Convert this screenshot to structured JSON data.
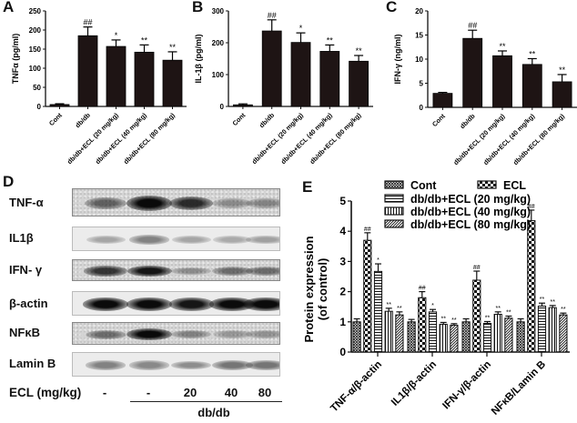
{
  "panels": {
    "A": {
      "letter": "A"
    },
    "B": {
      "letter": "B"
    },
    "C": {
      "letter": "C"
    },
    "D": {
      "letter": "D"
    },
    "E": {
      "letter": "E"
    }
  },
  "chart_data": [
    {
      "id": "A",
      "type": "bar",
      "title": "",
      "xlabel": "",
      "ylabel": "TNFα (pg/ml)",
      "categories": [
        "Cont",
        "db/db",
        "db/db+ECL (20 mg/kg)",
        "db/db+ECL (40 mg/kg)",
        "db/db+ECL (80 mg/kg)"
      ],
      "values": [
        5,
        185,
        157,
        142,
        121
      ],
      "errors": [
        2,
        23,
        17,
        19,
        22
      ],
      "annotations": [
        "",
        "##",
        "*",
        "**",
        "**"
      ],
      "ylim": [
        0,
        250
      ],
      "yticks": [
        0,
        50,
        100,
        150,
        200,
        250
      ],
      "bar_color": "#1e1414",
      "grid": false
    },
    {
      "id": "B",
      "type": "bar",
      "title": "",
      "xlabel": "",
      "ylabel": "IL-1β (pg/ml)",
      "categories": [
        "Cont",
        "db/db",
        "db/db+ECL (20 mg/kg)",
        "db/db+ECL (40 mg/kg)",
        "db/db+ECL (80 mg/kg)"
      ],
      "values": [
        5,
        237,
        201,
        173,
        142
      ],
      "errors": [
        3,
        35,
        30,
        20,
        18
      ],
      "annotations": [
        "",
        "##",
        "*",
        "**",
        "**"
      ],
      "ylim": [
        0,
        300
      ],
      "yticks": [
        0,
        100,
        200,
        300
      ],
      "bar_color": "#1e1414",
      "grid": false
    },
    {
      "id": "C",
      "type": "bar",
      "title": "",
      "xlabel": "",
      "ylabel": "IFN-γ (ng/ml)",
      "categories": [
        "Cont",
        "db/db",
        "db/db+ECL (20 mg/kg)",
        "db/db+ECL (40 mg/kg)",
        "db/db+ECL (80 mg/kg)"
      ],
      "values": [
        2.9,
        14.3,
        10.7,
        8.9,
        5.3
      ],
      "errors": [
        0.2,
        1.7,
        1.0,
        1.2,
        1.5
      ],
      "annotations": [
        "",
        "##",
        "**",
        "**",
        "**"
      ],
      "ylim": [
        0,
        20
      ],
      "yticks": [
        0,
        5,
        10,
        15,
        20
      ],
      "bar_color": "#1e1414",
      "grid": false
    },
    {
      "id": "E",
      "type": "bar",
      "title": "",
      "xlabel": "",
      "ylabel": "Protein expression (of control)",
      "categories": [
        "TNF-α/β-actin",
        "IL1β/β-actin",
        "IFN-γ/β-actin",
        "NFκB/Lamin B"
      ],
      "series": [
        {
          "name": "Cont",
          "pattern": "crosshatch",
          "values": [
            1.0,
            1.0,
            1.0,
            1.0
          ],
          "errors": [
            0.1,
            0.08,
            0.1,
            0.1
          ],
          "annotations": [
            "",
            "",
            "",
            ""
          ]
        },
        {
          "name": "ECL",
          "pattern": "checker",
          "values": [
            3.7,
            1.8,
            2.38,
            4.35
          ],
          "errors": [
            0.25,
            0.2,
            0.3,
            0.35
          ],
          "annotations": [
            "##",
            "##",
            "##",
            "##"
          ]
        },
        {
          "name": "db/db+ECL (20 mg/kg)",
          "pattern": "horizontal",
          "values": [
            2.67,
            1.33,
            0.95,
            1.52
          ],
          "errors": [
            0.25,
            0.08,
            0.06,
            0.1
          ],
          "annotations": [
            "*",
            "*",
            "**",
            "**"
          ]
        },
        {
          "name": "db/db+ECL (40 mg/kg)",
          "pattern": "vertical",
          "values": [
            1.35,
            0.92,
            1.25,
            1.47
          ],
          "errors": [
            0.1,
            0.06,
            0.08,
            0.07
          ],
          "annotations": [
            "**",
            "**",
            "**",
            "**"
          ]
        },
        {
          "name": "db/db+ECL (80 mg/kg)",
          "pattern": "diagonal",
          "values": [
            1.23,
            0.89,
            1.12,
            1.23
          ],
          "errors": [
            0.1,
            0.05,
            0.07,
            0.06
          ],
          "annotations": [
            "**",
            "**",
            "**",
            "**"
          ]
        }
      ],
      "ylim": [
        0,
        5
      ],
      "yticks": [
        0,
        1,
        2,
        3,
        4,
        5
      ],
      "legend_position": "top-right",
      "grid": false
    }
  ],
  "western_blot": {
    "rows": [
      {
        "label": "TNF-α",
        "intensities": [
          0.55,
          1.0,
          0.8,
          0.35,
          0.38
        ],
        "noise": true
      },
      {
        "label": "IL1β",
        "intensities": [
          0.3,
          0.45,
          0.3,
          0.28,
          0.32
        ],
        "noise": false
      },
      {
        "label": "IFN- γ",
        "intensities": [
          0.75,
          0.9,
          0.35,
          0.5,
          0.5
        ],
        "noise": true
      },
      {
        "label": "β-actin",
        "intensities": [
          0.95,
          0.95,
          0.9,
          0.95,
          0.95
        ],
        "noise": false
      },
      {
        "label": "NFκB",
        "intensities": [
          0.5,
          1.0,
          0.4,
          0.3,
          0.32
        ],
        "noise": true
      },
      {
        "label": "Lamin B",
        "intensities": [
          0.45,
          0.42,
          0.4,
          0.5,
          0.5
        ],
        "noise": false
      }
    ],
    "dose_label": "ECL (mg/kg)",
    "lanes": [
      "-",
      "-",
      "20",
      "40",
      "80"
    ],
    "group_label": "db/db"
  }
}
